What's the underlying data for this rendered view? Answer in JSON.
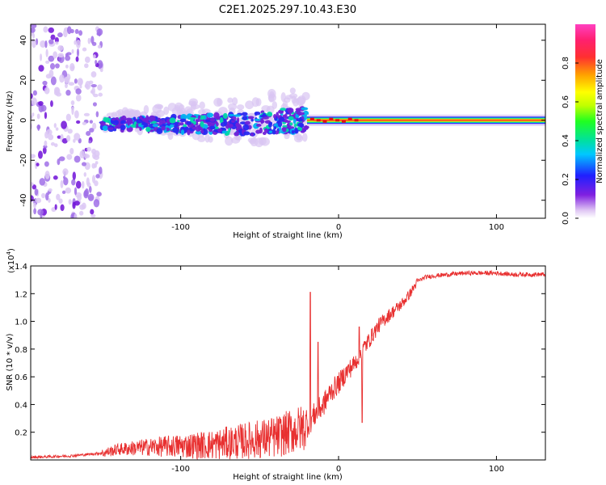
{
  "chart_data": [
    {
      "type": "heatmap",
      "title": "C2E1.2025.297.10.43.E30",
      "xlabel": "Height of straight line (km)",
      "ylabel": "Frequency (Hz)",
      "xlim": [
        -195,
        131
      ],
      "ylim": [
        -49,
        48
      ],
      "xticks": [
        -100,
        0,
        100
      ],
      "xtick_labels": [
        "-100",
        "0",
        "100"
      ],
      "yticks": [
        -40,
        -20,
        0,
        20,
        40
      ],
      "ytick_labels": [
        "-40",
        "-20",
        "0",
        "20",
        "40"
      ],
      "colorbar": {
        "label": "Normalized spectral amplitude",
        "range": [
          0,
          1
        ],
        "ticks": [
          0.0,
          0.2,
          0.4,
          0.6,
          0.8
        ],
        "tick_labels": [
          "0.0",
          "0.2",
          "0.4",
          "0.6",
          "0.8"
        ],
        "colormap_stops": [
          "#ffffff",
          "#e0c8f4",
          "#8020e0",
          "#2020ff",
          "#00c8ff",
          "#00e0a0",
          "#20ff20",
          "#c0ff00",
          "#ffff00",
          "#ffa000",
          "#ff3030",
          "#ff2070",
          "#ff40c0"
        ]
      },
      "features": {
        "noise_region_x": [
          -195,
          -150
        ],
        "scatter_band_x": [
          -150,
          -20
        ],
        "stable_line_x": [
          -20,
          131
        ],
        "stable_line_frequency_hz": 0
      }
    },
    {
      "type": "line",
      "xlabel": "Height of straight line (km)",
      "ylabel": "SNR (10 * v/v)",
      "y_multiplier": "(x10",
      "y_multiplier_exp": "4",
      "y_multiplier_close": ")",
      "xlim": [
        -195,
        131
      ],
      "ylim": [
        0,
        1.4
      ],
      "xticks": [
        -100,
        0,
        100
      ],
      "xtick_labels": [
        "-100",
        "0",
        "100"
      ],
      "yticks": [
        0.2,
        0.4,
        0.6,
        0.8,
        1.0,
        1.2,
        1.4
      ],
      "ytick_labels": [
        "0.2",
        "0.4",
        "0.6",
        "0.8",
        "1.0",
        "1.2",
        "1.4"
      ],
      "color": "#e83030",
      "series": [
        {
          "name": "SNR",
          "x": [
            -195,
            -170,
            -150,
            -140,
            -120,
            -100,
            -80,
            -60,
            -40,
            -30,
            -20,
            -15,
            -10,
            -5,
            0,
            5,
            10,
            15,
            20,
            25,
            30,
            35,
            40,
            45,
            50,
            55,
            60,
            70,
            80,
            90,
            100,
            110,
            120,
            131
          ],
          "y": [
            0.02,
            0.03,
            0.05,
            0.08,
            0.1,
            0.11,
            0.12,
            0.15,
            0.18,
            0.22,
            0.26,
            0.34,
            0.4,
            0.5,
            0.56,
            0.64,
            0.7,
            0.8,
            0.88,
            0.97,
            1.03,
            1.08,
            1.13,
            1.2,
            1.29,
            1.32,
            1.33,
            1.34,
            1.35,
            1.35,
            1.35,
            1.34,
            1.34,
            1.34
          ],
          "spikes": [
            {
              "x": -18,
              "y": 1.21
            },
            {
              "x": -13,
              "y": 0.85
            },
            {
              "x": 13,
              "y": 0.96
            },
            {
              "x": 15,
              "y": 0.27
            }
          ]
        }
      ]
    }
  ]
}
